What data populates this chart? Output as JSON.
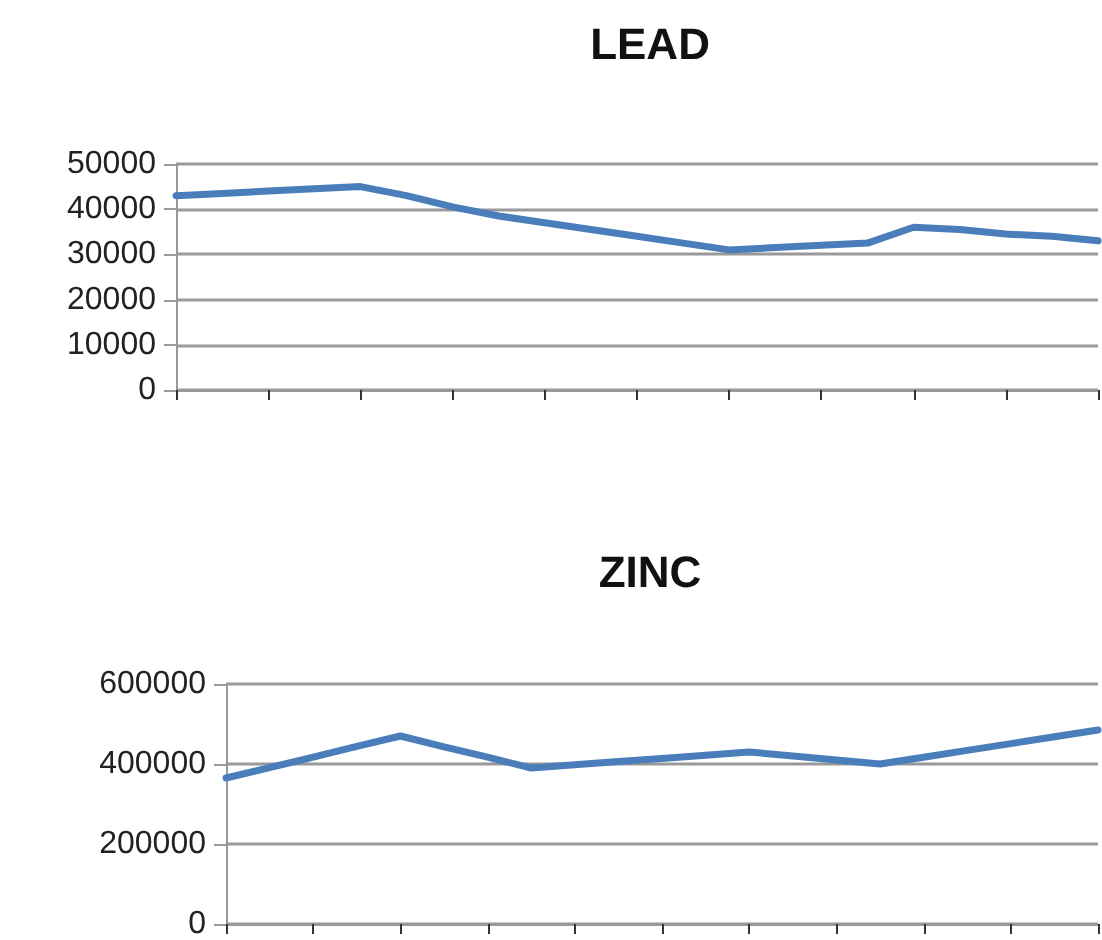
{
  "chart_data": [
    {
      "type": "line",
      "title": "LEAD",
      "categories": [
        null,
        null,
        null,
        null,
        null,
        null,
        null,
        null,
        null,
        null,
        null,
        null,
        null,
        null,
        null,
        null,
        null,
        null,
        null,
        null,
        null
      ],
      "series": [
        {
          "color": "#4a7ebb",
          "values": [
            43000,
            43500,
            44000,
            44500,
            45000,
            43000,
            40500,
            38500,
            37000,
            35500,
            34000,
            32500,
            31000,
            31500,
            32000,
            32500,
            36000,
            35500,
            34500,
            34000,
            33000
          ]
        }
      ],
      "ylim": [
        0,
        50000
      ],
      "yticks": [
        0,
        10000,
        20000,
        30000,
        40000,
        50000
      ],
      "grid": "y",
      "tick_labels": "y",
      "marker": "none",
      "line_style": "solid"
    },
    {
      "type": "line",
      "title": "ZINC",
      "categories": [
        null,
        null,
        null,
        null,
        null,
        null,
        null,
        null,
        null,
        null,
        null,
        null,
        null,
        null,
        null,
        null,
        null,
        null,
        null,
        null,
        null
      ],
      "series": [
        {
          "color": "#4a7ebb",
          "values": [
            365000,
            391000,
            417000,
            444000,
            470000,
            443000,
            417000,
            390000,
            398000,
            406000,
            414000,
            422000,
            430000,
            420000,
            410000,
            400000,
            417000,
            434000,
            451000,
            468000,
            485000
          ]
        }
      ],
      "ylim": [
        0,
        600000
      ],
      "yticks": [
        0,
        200000,
        400000,
        600000
      ],
      "grid": "y",
      "tick_labels": "y",
      "marker": "none",
      "line_style": "solid"
    }
  ]
}
